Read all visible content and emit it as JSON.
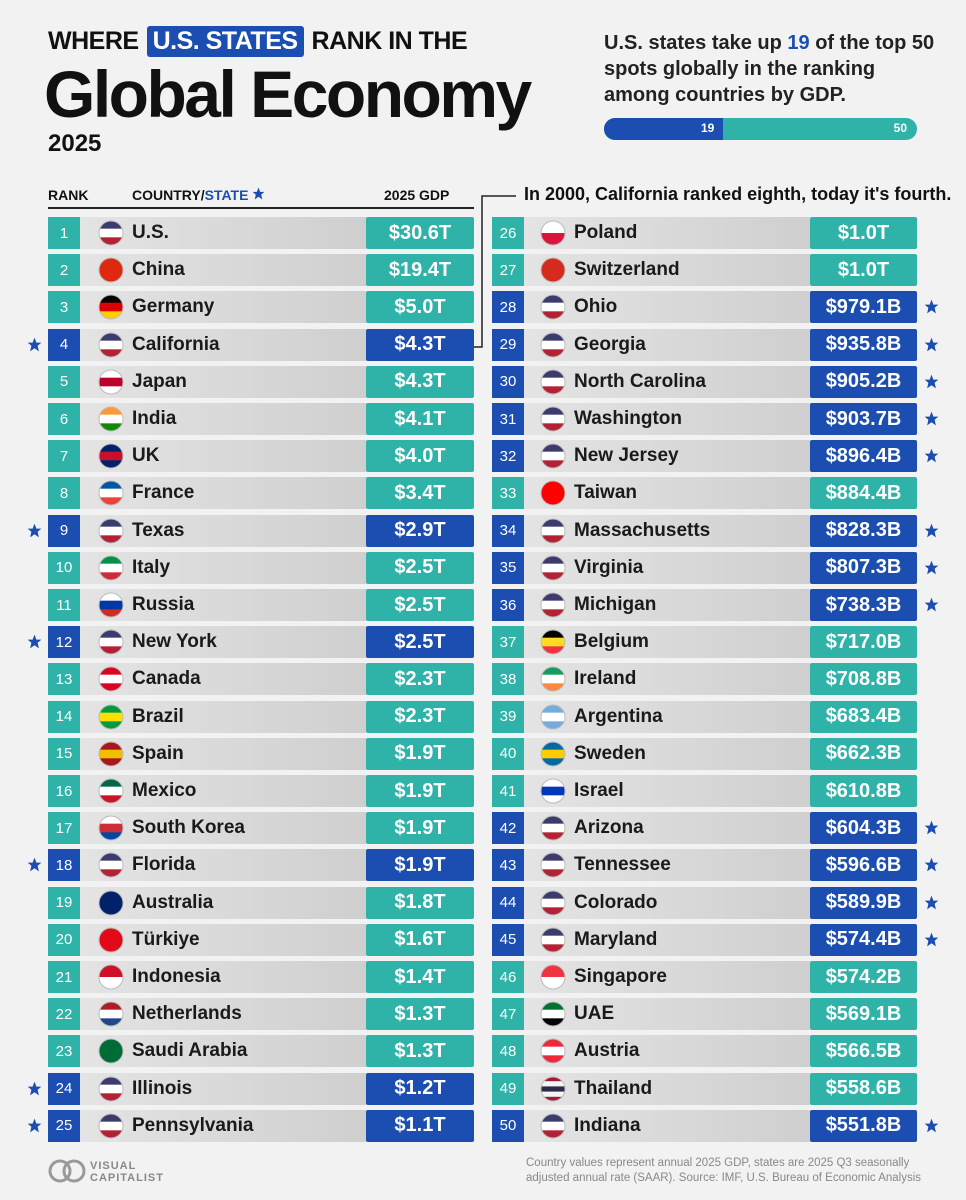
{
  "header": {
    "title_line1": [
      "WHERE",
      "U.S. STATES",
      "RANK IN THE"
    ],
    "title_main": "Global Economy",
    "year": "2025",
    "callout": {
      "before": "U.S. states take up",
      "highlight": "19",
      "after": "of the top 50 spots globally in the ranking among countries by GDP."
    },
    "bar": {
      "value": 19,
      "total": 50
    }
  },
  "columns": {
    "rank": "RANK",
    "country": "COUNTRY/",
    "state": "STATE",
    "gdp": "2025 GDP"
  },
  "annotation": "In 2000, California ranked eighth, today it's fourth.",
  "table": {
    "rows": [
      {
        "rank": 1,
        "name": "U.S.",
        "gdp": "$30.6T",
        "state": false,
        "flag": [
          "#3c3b6e",
          "#ffffff",
          "#b22234"
        ]
      },
      {
        "rank": 2,
        "name": "China",
        "gdp": "$19.4T",
        "state": false,
        "flag": [
          "#de2910"
        ]
      },
      {
        "rank": 3,
        "name": "Germany",
        "gdp": "$5.0T",
        "state": false,
        "flag": [
          "#000000",
          "#dd0000",
          "#ffce00"
        ]
      },
      {
        "rank": 4,
        "name": "California",
        "gdp": "$4.3T",
        "state": true,
        "flag": [
          "#3c3b6e",
          "#ffffff",
          "#b22234"
        ]
      },
      {
        "rank": 5,
        "name": "Japan",
        "gdp": "$4.3T",
        "state": false,
        "flag": [
          "#ffffff",
          "#bc002d",
          "#ffffff"
        ]
      },
      {
        "rank": 6,
        "name": "India",
        "gdp": "$4.1T",
        "state": false,
        "flag": [
          "#ff9933",
          "#ffffff",
          "#138808"
        ]
      },
      {
        "rank": 7,
        "name": "UK",
        "gdp": "$4.0T",
        "state": false,
        "flag": [
          "#012169",
          "#c8102e",
          "#012169"
        ]
      },
      {
        "rank": 8,
        "name": "France",
        "gdp": "$3.4T",
        "state": false,
        "flag": [
          "#0055a4",
          "#ffffff",
          "#ef4135"
        ]
      },
      {
        "rank": 9,
        "name": "Texas",
        "gdp": "$2.9T",
        "state": true,
        "flag": [
          "#3c3b6e",
          "#ffffff",
          "#b22234"
        ]
      },
      {
        "rank": 10,
        "name": "Italy",
        "gdp": "$2.5T",
        "state": false,
        "flag": [
          "#009246",
          "#ffffff",
          "#ce2b37"
        ]
      },
      {
        "rank": 11,
        "name": "Russia",
        "gdp": "$2.5T",
        "state": false,
        "flag": [
          "#ffffff",
          "#0039a6",
          "#d52b1e"
        ]
      },
      {
        "rank": 12,
        "name": "New York",
        "gdp": "$2.5T",
        "state": true,
        "flag": [
          "#3c3b6e",
          "#ffffff",
          "#b22234"
        ]
      },
      {
        "rank": 13,
        "name": "Canada",
        "gdp": "$2.3T",
        "state": false,
        "flag": [
          "#d80621",
          "#ffffff",
          "#d80621"
        ]
      },
      {
        "rank": 14,
        "name": "Brazil",
        "gdp": "$2.3T",
        "state": false,
        "flag": [
          "#009c3b",
          "#ffdf00",
          "#009c3b"
        ]
      },
      {
        "rank": 15,
        "name": "Spain",
        "gdp": "$1.9T",
        "state": false,
        "flag": [
          "#aa151b",
          "#f1bf00",
          "#aa151b"
        ]
      },
      {
        "rank": 16,
        "name": "Mexico",
        "gdp": "$1.9T",
        "state": false,
        "flag": [
          "#006847",
          "#ffffff",
          "#ce1126"
        ]
      },
      {
        "rank": 17,
        "name": "South Korea",
        "gdp": "$1.9T",
        "state": false,
        "flag": [
          "#ffffff",
          "#cd2e3a",
          "#0047a0"
        ]
      },
      {
        "rank": 18,
        "name": "Florida",
        "gdp": "$1.9T",
        "state": true,
        "flag": [
          "#3c3b6e",
          "#ffffff",
          "#b22234"
        ]
      },
      {
        "rank": 19,
        "name": "Australia",
        "gdp": "$1.8T",
        "state": false,
        "flag": [
          "#012169"
        ]
      },
      {
        "rank": 20,
        "name": "Türkiye",
        "gdp": "$1.6T",
        "state": false,
        "flag": [
          "#e30a17"
        ]
      },
      {
        "rank": 21,
        "name": "Indonesia",
        "gdp": "$1.4T",
        "state": false,
        "flag": [
          "#ce1126",
          "#ffffff"
        ]
      },
      {
        "rank": 22,
        "name": "Netherlands",
        "gdp": "$1.3T",
        "state": false,
        "flag": [
          "#ae1c28",
          "#ffffff",
          "#21468b"
        ]
      },
      {
        "rank": 23,
        "name": "Saudi Arabia",
        "gdp": "$1.3T",
        "state": false,
        "flag": [
          "#006c35"
        ]
      },
      {
        "rank": 24,
        "name": "Illinois",
        "gdp": "$1.2T",
        "state": true,
        "flag": [
          "#3c3b6e",
          "#ffffff",
          "#b22234"
        ]
      },
      {
        "rank": 25,
        "name": "Pennsylvania",
        "gdp": "$1.1T",
        "state": true,
        "flag": [
          "#3c3b6e",
          "#ffffff",
          "#b22234"
        ]
      },
      {
        "rank": 26,
        "name": "Poland",
        "gdp": "$1.0T",
        "state": false,
        "flag": [
          "#ffffff",
          "#dc143c"
        ]
      },
      {
        "rank": 27,
        "name": "Switzerland",
        "gdp": "$1.0T",
        "state": false,
        "flag": [
          "#d52b1e"
        ]
      },
      {
        "rank": 28,
        "name": "Ohio",
        "gdp": "$979.1B",
        "state": true,
        "flag": [
          "#3c3b6e",
          "#ffffff",
          "#b22234"
        ]
      },
      {
        "rank": 29,
        "name": "Georgia",
        "gdp": "$935.8B",
        "state": true,
        "flag": [
          "#3c3b6e",
          "#ffffff",
          "#b22234"
        ]
      },
      {
        "rank": 30,
        "name": "North Carolina",
        "gdp": "$905.2B",
        "state": true,
        "flag": [
          "#3c3b6e",
          "#ffffff",
          "#b22234"
        ]
      },
      {
        "rank": 31,
        "name": "Washington",
        "gdp": "$903.7B",
        "state": true,
        "flag": [
          "#3c3b6e",
          "#ffffff",
          "#b22234"
        ]
      },
      {
        "rank": 32,
        "name": "New Jersey",
        "gdp": "$896.4B",
        "state": true,
        "flag": [
          "#3c3b6e",
          "#ffffff",
          "#b22234"
        ]
      },
      {
        "rank": 33,
        "name": "Taiwan",
        "gdp": "$884.4B",
        "state": false,
        "flag": [
          "#fe0000"
        ]
      },
      {
        "rank": 34,
        "name": "Massachusetts",
        "gdp": "$828.3B",
        "state": true,
        "flag": [
          "#3c3b6e",
          "#ffffff",
          "#b22234"
        ]
      },
      {
        "rank": 35,
        "name": "Virginia",
        "gdp": "$807.3B",
        "state": true,
        "flag": [
          "#3c3b6e",
          "#ffffff",
          "#b22234"
        ]
      },
      {
        "rank": 36,
        "name": "Michigan",
        "gdp": "$738.3B",
        "state": true,
        "flag": [
          "#3c3b6e",
          "#ffffff",
          "#b22234"
        ]
      },
      {
        "rank": 37,
        "name": "Belgium",
        "gdp": "$717.0B",
        "state": false,
        "flag": [
          "#000000",
          "#fdda24",
          "#ef3340"
        ]
      },
      {
        "rank": 38,
        "name": "Ireland",
        "gdp": "$708.8B",
        "state": false,
        "flag": [
          "#169b62",
          "#ffffff",
          "#ff883e"
        ]
      },
      {
        "rank": 39,
        "name": "Argentina",
        "gdp": "$683.4B",
        "state": false,
        "flag": [
          "#74acdf",
          "#ffffff",
          "#74acdf"
        ]
      },
      {
        "rank": 40,
        "name": "Sweden",
        "gdp": "$662.3B",
        "state": false,
        "flag": [
          "#006aa7",
          "#fecc00",
          "#006aa7"
        ]
      },
      {
        "rank": 41,
        "name": "Israel",
        "gdp": "$610.8B",
        "state": false,
        "flag": [
          "#ffffff",
          "#0038b8",
          "#ffffff"
        ]
      },
      {
        "rank": 42,
        "name": "Arizona",
        "gdp": "$604.3B",
        "state": true,
        "flag": [
          "#3c3b6e",
          "#ffffff",
          "#b22234"
        ]
      },
      {
        "rank": 43,
        "name": "Tennessee",
        "gdp": "$596.6B",
        "state": true,
        "flag": [
          "#3c3b6e",
          "#ffffff",
          "#b22234"
        ]
      },
      {
        "rank": 44,
        "name": "Colorado",
        "gdp": "$589.9B",
        "state": true,
        "flag": [
          "#3c3b6e",
          "#ffffff",
          "#b22234"
        ]
      },
      {
        "rank": 45,
        "name": "Maryland",
        "gdp": "$574.4B",
        "state": true,
        "flag": [
          "#3c3b6e",
          "#ffffff",
          "#b22234"
        ]
      },
      {
        "rank": 46,
        "name": "Singapore",
        "gdp": "$574.2B",
        "state": false,
        "flag": [
          "#ef3340",
          "#ffffff"
        ]
      },
      {
        "rank": 47,
        "name": "UAE",
        "gdp": "$569.1B",
        "state": false,
        "flag": [
          "#00732f",
          "#ffffff",
          "#000000"
        ]
      },
      {
        "rank": 48,
        "name": "Austria",
        "gdp": "$566.5B",
        "state": false,
        "flag": [
          "#ed2939",
          "#ffffff",
          "#ed2939"
        ]
      },
      {
        "rank": 49,
        "name": "Thailand",
        "gdp": "$558.6B",
        "state": false,
        "flag": [
          "#a51931",
          "#f4f5f8",
          "#2d2a4a",
          "#f4f5f8",
          "#a51931"
        ]
      },
      {
        "rank": 50,
        "name": "Indiana",
        "gdp": "$551.8B",
        "state": true,
        "flag": [
          "#3c3b6e",
          "#ffffff",
          "#b22234"
        ]
      }
    ]
  },
  "footer": {
    "logo": [
      "VISUAL",
      "CAPITALIST"
    ],
    "note": "Country values represent annual 2025 GDP, states are 2025 Q3 seasonally adjusted annual rate (SAAR). Source: IMF, U.S. Bureau of Economic Analysis"
  }
}
